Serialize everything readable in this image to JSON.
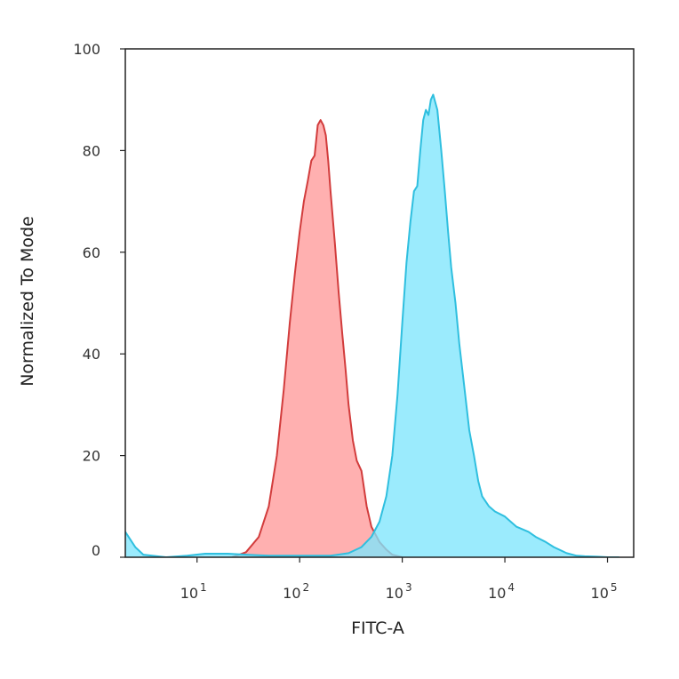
{
  "chart_data": {
    "type": "area",
    "title": "",
    "xlabel": "FITC-A",
    "ylabel": "Normalized To Mode",
    "x_scale": "log",
    "xlim": [
      2,
      180000
    ],
    "ylim": [
      0,
      100
    ],
    "x_ticks": [
      {
        "value": 10,
        "base": "10",
        "exp": "1"
      },
      {
        "value": 100,
        "base": "10",
        "exp": "2"
      },
      {
        "value": 1000,
        "base": "10",
        "exp": "3"
      },
      {
        "value": 10000,
        "base": "10",
        "exp": "4"
      },
      {
        "value": 100000,
        "base": "10",
        "exp": "5"
      }
    ],
    "y_ticks": [
      {
        "value": 0,
        "label": "0"
      },
      {
        "value": 20,
        "label": "20"
      },
      {
        "value": 40,
        "label": "40"
      },
      {
        "value": 60,
        "label": "60"
      },
      {
        "value": 80,
        "label": "80"
      },
      {
        "value": 100,
        "label": "100"
      }
    ],
    "grid": false,
    "legend": "none",
    "series": [
      {
        "fill": "#ff9a9a",
        "stroke": "#d23c3c",
        "x": [
          22,
          30,
          40,
          50,
          60,
          70,
          80,
          90,
          100,
          110,
          120,
          130,
          140,
          150,
          160,
          170,
          180,
          190,
          200,
          220,
          240,
          260,
          280,
          300,
          330,
          360,
          400,
          450,
          500,
          600,
          700,
          800,
          1000
        ],
        "y": [
          0,
          1,
          4,
          10,
          20,
          33,
          46,
          56,
          64,
          70,
          74,
          78,
          79,
          85,
          86,
          85,
          83,
          78,
          72,
          62,
          52,
          44,
          37,
          30,
          23,
          19,
          17,
          10,
          6,
          3,
          1.5,
          0.5,
          0
        ]
      },
      {
        "fill": "#7fe6fc",
        "stroke": "#2fbfdf",
        "x": [
          2,
          2.5,
          3,
          5,
          8,
          12,
          20,
          30,
          50,
          100,
          200,
          300,
          400,
          500,
          600,
          700,
          800,
          900,
          1000,
          1100,
          1200,
          1300,
          1400,
          1500,
          1600,
          1700,
          1800,
          1900,
          2000,
          2200,
          2400,
          2600,
          2800,
          3000,
          3300,
          3600,
          4000,
          4500,
          5000,
          5500,
          6000,
          7000,
          8000,
          10000,
          13000,
          17000,
          20000,
          25000,
          30000,
          40000,
          50000,
          60000,
          80000,
          100000,
          130000
        ],
        "y": [
          5,
          2,
          0.5,
          0,
          0.3,
          0.7,
          0.7,
          0.5,
          0.3,
          0.3,
          0.3,
          0.8,
          2,
          4,
          7,
          12,
          20,
          32,
          46,
          58,
          66,
          72,
          73,
          80,
          86,
          88,
          87,
          90,
          91,
          88,
          80,
          72,
          64,
          57,
          50,
          42,
          34,
          25,
          20,
          15,
          12,
          10,
          9,
          8,
          6,
          5,
          4,
          3,
          2,
          0.8,
          0.3,
          0.2,
          0.1,
          0,
          0
        ]
      }
    ]
  }
}
